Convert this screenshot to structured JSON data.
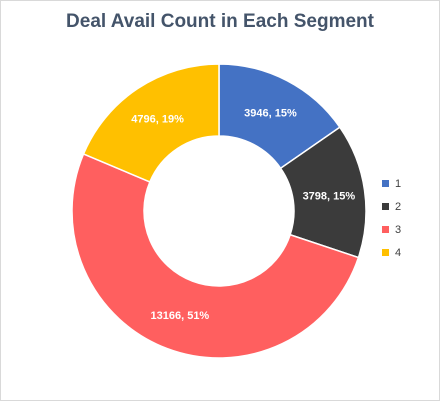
{
  "chart_data": {
    "type": "pie",
    "variant": "donut",
    "title": "Deal Avail Count in Each Segment",
    "categories": [
      "1",
      "2",
      "3",
      "4"
    ],
    "values": [
      3946,
      3798,
      13166,
      4796
    ],
    "percent_labels": [
      "15%",
      "15%",
      "51%",
      "19%"
    ],
    "data_labels": [
      "3946, 15%",
      "3798, 15%",
      "13166, 51%",
      "4796, 19%"
    ],
    "colors": [
      "#4472c4",
      "#3b3b3b",
      "#ff5f5f",
      "#ffc000"
    ],
    "legend": {
      "position": "right",
      "entries": [
        "1",
        "2",
        "3",
        "4"
      ]
    }
  }
}
